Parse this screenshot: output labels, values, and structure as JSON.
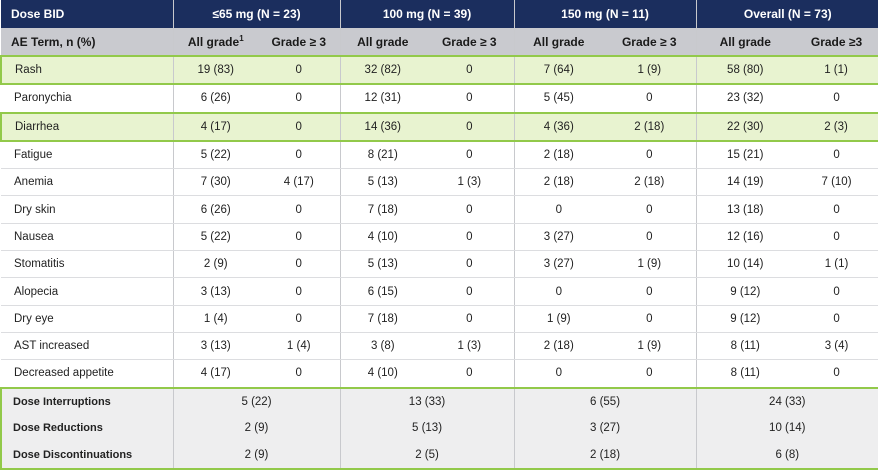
{
  "header": {
    "dose_label": "Dose BID",
    "groups": [
      "≤65 mg (N = 23)",
      "100 mg (N = 39)",
      "150 mg (N = 11)",
      "Overall (N = 73)"
    ],
    "term_label": "AE Term, n (%)",
    "sub": [
      "All grade",
      "Grade ≥ 3",
      "All grade",
      "Grade ≥ 3",
      "All grade",
      "Grade ≥ 3",
      "All grade",
      "Grade ≥3"
    ],
    "footnote_mark": "1"
  },
  "rows": [
    {
      "term": "Rash",
      "vals": [
        "19 (83)",
        "0",
        "32 (82)",
        "0",
        "7 (64)",
        "1 (9)",
        "58 (80)",
        "1 (1)"
      ]
    },
    {
      "term": "Paronychia",
      "vals": [
        "6 (26)",
        "0",
        "12 (31)",
        "0",
        "5 (45)",
        "0",
        "23 (32)",
        "0"
      ]
    },
    {
      "term": "Diarrhea",
      "vals": [
        "4 (17)",
        "0",
        "14 (36)",
        "0",
        "4 (36)",
        "2 (18)",
        "22 (30)",
        "2 (3)"
      ]
    },
    {
      "term": "Fatigue",
      "vals": [
        "5 (22)",
        "0",
        "8 (21)",
        "0",
        "2 (18)",
        "0",
        "15 (21)",
        "0"
      ]
    },
    {
      "term": "Anemia",
      "vals": [
        "7 (30)",
        "4 (17)",
        "5 (13)",
        "1 (3)",
        "2 (18)",
        "2 (18)",
        "14 (19)",
        "7 (10)"
      ]
    },
    {
      "term": "Dry skin",
      "vals": [
        "6 (26)",
        "0",
        "7 (18)",
        "0",
        "0",
        "0",
        "13 (18)",
        "0"
      ]
    },
    {
      "term": "Nausea",
      "vals": [
        "5 (22)",
        "0",
        "4 (10)",
        "0",
        "3 (27)",
        "0",
        "12 (16)",
        "0"
      ]
    },
    {
      "term": "Stomatitis",
      "vals": [
        "2 (9)",
        "0",
        "5 (13)",
        "0",
        "3 (27)",
        "1 (9)",
        "10 (14)",
        "1 (1)"
      ]
    },
    {
      "term": "Alopecia",
      "vals": [
        "3 (13)",
        "0",
        "6 (15)",
        "0",
        "0",
        "0",
        "9 (12)",
        "0"
      ]
    },
    {
      "term": "Dry eye",
      "vals": [
        "1 (4)",
        "0",
        "7 (18)",
        "0",
        "1 (9)",
        "0",
        "9 (12)",
        "0"
      ]
    },
    {
      "term": "AST increased",
      "vals": [
        "3 (13)",
        "1 (4)",
        "3 (8)",
        "1 (3)",
        "2 (18)",
        "1 (9)",
        "8 (11)",
        "3 (4)"
      ]
    },
    {
      "term": "Decreased appetite",
      "vals": [
        "4 (17)",
        "0",
        "4 (10)",
        "0",
        "0",
        "0",
        "8 (11)",
        "0"
      ]
    }
  ],
  "dose_rows": [
    {
      "label": "Dose Interruptions",
      "vals": [
        "5 (22)",
        "13 (33)",
        "6 (55)",
        "24 (33)"
      ]
    },
    {
      "label": "Dose Reductions",
      "vals": [
        "2 (9)",
        "5 (13)",
        "3 (27)",
        "10 (14)"
      ]
    },
    {
      "label": "Dose Discontinuations",
      "vals": [
        "2 (9)",
        "2 (5)",
        "2 (18)",
        "6 (8)"
      ]
    }
  ],
  "colors": {
    "header_bg": "#1b2e5e",
    "subheader_bg": "#c9cacf",
    "highlight_bg": "#e8f3d0",
    "highlight_border": "#92c94a"
  }
}
